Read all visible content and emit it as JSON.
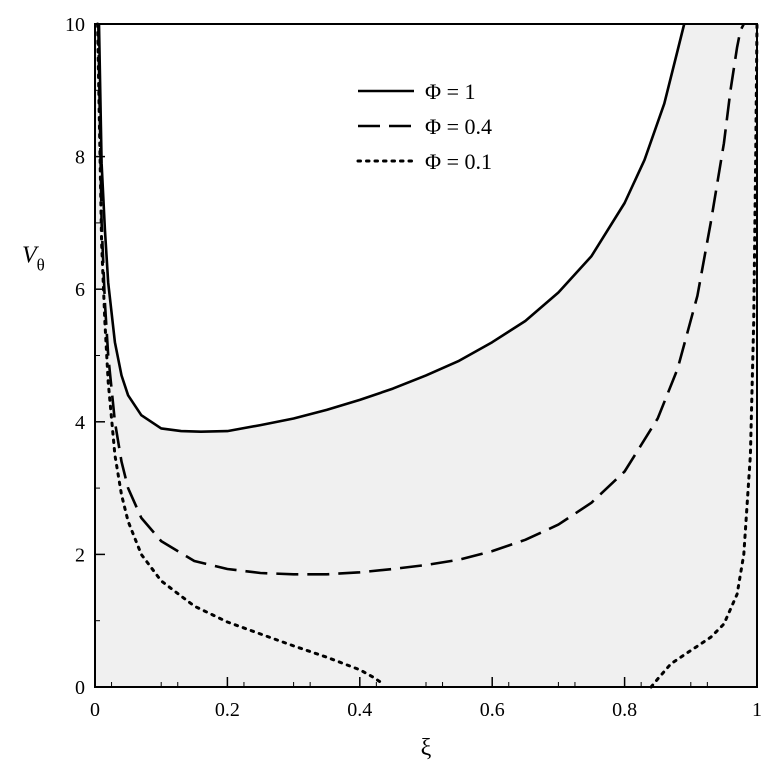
{
  "chart_data": {
    "type": "line",
    "title": "",
    "xlabel": "ξ",
    "ylabel": {
      "main": "V",
      "subscript": "θ"
    },
    "xlim": [
      0,
      1
    ],
    "ylim": [
      0,
      10
    ],
    "x_ticks": [
      0,
      0.2,
      0.4,
      0.6,
      0.8,
      1
    ],
    "x_tick_labels": [
      "0",
      "0.2",
      "0.4",
      "0.6",
      "0.8",
      "1"
    ],
    "y_ticks": [
      0,
      2,
      4,
      6,
      8,
      10
    ],
    "y_tick_labels": [
      "0",
      "2",
      "4",
      "6",
      "8",
      "10"
    ],
    "grid": false,
    "legend_position": "top-center",
    "shaded_region": "below the Φ = 1 curve",
    "colors": {
      "line": "#000000",
      "shade": "#f0f0f0"
    },
    "series": [
      {
        "name": "Φ = 1",
        "style": "solid",
        "x": [
          0.006,
          0.01,
          0.015,
          0.02,
          0.03,
          0.04,
          0.05,
          0.07,
          0.1,
          0.13,
          0.16,
          0.2,
          0.25,
          0.3,
          0.35,
          0.4,
          0.45,
          0.5,
          0.55,
          0.6,
          0.65,
          0.7,
          0.75,
          0.8,
          0.83,
          0.86,
          0.88,
          0.89
        ],
        "y": [
          10,
          7.9,
          6.9,
          6.1,
          5.2,
          4.7,
          4.4,
          4.1,
          3.9,
          3.86,
          3.85,
          3.86,
          3.95,
          4.05,
          4.18,
          4.33,
          4.5,
          4.7,
          4.92,
          5.2,
          5.52,
          5.95,
          6.5,
          7.3,
          7.95,
          8.8,
          9.6,
          10
        ]
      },
      {
        "name": "Φ = 0.4",
        "style": "dashed",
        "x": [
          0.005,
          0.01,
          0.015,
          0.02,
          0.03,
          0.04,
          0.05,
          0.07,
          0.1,
          0.15,
          0.2,
          0.25,
          0.3,
          0.35,
          0.4,
          0.45,
          0.5,
          0.55,
          0.6,
          0.65,
          0.7,
          0.75,
          0.8,
          0.85,
          0.88,
          0.91,
          0.93,
          0.95,
          0.96,
          0.97,
          0.975,
          0.98
        ],
        "y": [
          10,
          7,
          5.8,
          5,
          4,
          3.4,
          3,
          2.55,
          2.2,
          1.9,
          1.78,
          1.72,
          1.7,
          1.7,
          1.73,
          1.78,
          1.84,
          1.92,
          2.05,
          2.22,
          2.45,
          2.78,
          3.25,
          4.05,
          4.8,
          5.9,
          7,
          8.2,
          9,
          9.65,
          9.9,
          10
        ]
      },
      {
        "name": "Φ = 0.1",
        "style": "dotted",
        "x": [
          0.004,
          0.01,
          0.015,
          0.02,
          0.03,
          0.04,
          0.05,
          0.07,
          0.1,
          0.15,
          0.2,
          0.25,
          0.3,
          0.35,
          0.4,
          0.42,
          0.435
        ],
        "y": [
          10,
          6.7,
          5.5,
          4.6,
          3.5,
          2.9,
          2.5,
          2,
          1.6,
          1.22,
          0.98,
          0.8,
          0.62,
          0.45,
          0.26,
          0.15,
          0.05
        ]
      },
      {
        "name": "Φ = 0.1",
        "style": "dotted",
        "x": [
          0.84,
          0.85,
          0.87,
          0.9,
          0.93,
          0.95,
          0.97,
          0.98,
          0.99,
          0.995,
          0.998,
          1.0
        ],
        "y": [
          0,
          0.12,
          0.35,
          0.55,
          0.75,
          0.95,
          1.4,
          2,
          3.5,
          5.5,
          8,
          10
        ]
      }
    ],
    "legend": [
      {
        "label": "Φ = 1",
        "style": "solid"
      },
      {
        "label": "Φ = 0.4",
        "style": "dashed"
      },
      {
        "label": "Φ = 0.1",
        "style": "dotted"
      }
    ]
  }
}
